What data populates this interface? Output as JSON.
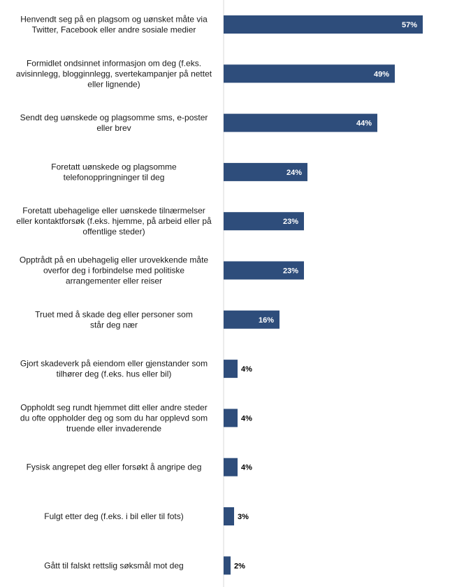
{
  "chart_data": {
    "type": "bar",
    "orientation": "horizontal",
    "title": "",
    "xlabel": "",
    "ylabel": "",
    "xlim": [
      0,
      57
    ],
    "grid": false,
    "legend": "none",
    "bar_color": "#2E4D7B",
    "axis_color": "#D9D9D9",
    "categories": [
      [
        "Henvendt seg på en plagsom og uønsket måte via",
        "Twitter, Facebook eller andre sosiale medier"
      ],
      [
        "Formidlet ondsinnet informasjon om deg (f.eks.",
        "avisinnlegg, blogginnlegg, svertekampanjer på nettet",
        "eller lignende)"
      ],
      [
        "Sendt deg uønskede og plagsomme sms,  e-poster",
        "eller brev"
      ],
      [
        "Foretatt uønskede og plagsomme",
        "telefonoppringninger til deg"
      ],
      [
        "Foretatt ubehagelige eller uønskede tilnærmelser",
        "eller kontaktforsøk (f.eks. hjemme, på arbeid eller på",
        "offentlige steder)"
      ],
      [
        "Opptrådt på en ubehagelig eller urovekkende måte",
        "overfor deg i forbindelse med politiske",
        "arrangementer eller reiser"
      ],
      [
        "Truet med å skade deg eller personer som",
        "står deg nær"
      ],
      [
        "Gjort skadeverk på eiendom eller gjenstander som",
        "tilhører deg (f.eks. hus eller bil)"
      ],
      [
        "Oppholdt seg rundt hjemmet ditt eller andre steder",
        "du ofte oppholder deg og som du har opplevd som",
        "truende eller invaderende"
      ],
      [
        "Fysisk angrepet deg eller forsøkt å angripe deg"
      ],
      [
        "Fulgt etter deg (f.eks. i bil eller til fots)"
      ],
      [
        "Gått til falskt rettslig søksmål mot deg"
      ]
    ],
    "values": [
      57,
      49,
      44,
      24,
      23,
      23,
      16,
      4,
      4,
      4,
      3,
      2
    ],
    "value_labels": [
      "57%",
      "49%",
      "44%",
      "24%",
      "23%",
      "23%",
      "16%",
      "4%",
      "4%",
      "4%",
      "3%",
      "2%"
    ]
  }
}
